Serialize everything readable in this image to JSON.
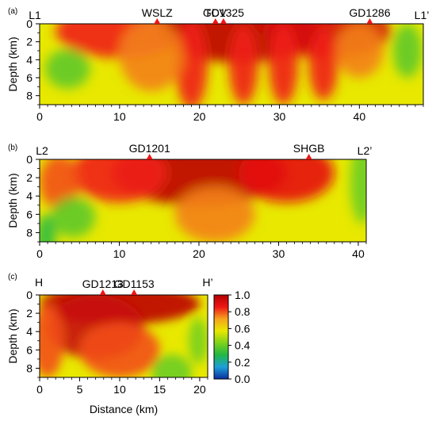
{
  "chart_data": [
    {
      "type": "heatmap",
      "panel_label": "(a)",
      "profile_start": "L1",
      "profile_end": "L1’",
      "ylabel": "Depth (km)",
      "xlabel": "",
      "xlim": [
        0,
        48
      ],
      "ylim": [
        0,
        9
      ],
      "xticks": [
        0,
        10,
        20,
        30,
        40
      ],
      "yticks": [
        0,
        2,
        4,
        6,
        8
      ],
      "stations": [
        {
          "name": "WSLZ",
          "x": 14.7
        },
        {
          "name": "TCV",
          "x": 22.0
        },
        {
          "name": "GD1325",
          "x": 23.0
        },
        {
          "name": "GD1286",
          "x": 41.3
        }
      ],
      "blobs": [
        {
          "x": 10,
          "y": 0.8,
          "rx": 8,
          "ry": 3.0,
          "v": 0.85
        },
        {
          "x": 25,
          "y": 0.8,
          "rx": 10,
          "ry": 3.5,
          "v": 0.98
        },
        {
          "x": 36,
          "y": 0.8,
          "rx": 8,
          "ry": 3.0,
          "v": 0.92
        },
        {
          "x": 19,
          "y": 4.5,
          "rx": 2.0,
          "ry": 5.0,
          "v": 0.85
        },
        {
          "x": 25.5,
          "y": 4.5,
          "rx": 1.8,
          "ry": 4.5,
          "v": 0.85
        },
        {
          "x": 30.5,
          "y": 4.5,
          "rx": 1.8,
          "ry": 4.5,
          "v": 0.85
        },
        {
          "x": 35.5,
          "y": 4.5,
          "rx": 1.8,
          "ry": 4.0,
          "v": 0.85
        },
        {
          "x": 14,
          "y": 3.5,
          "rx": 4,
          "ry": 4.0,
          "v": 0.75
        },
        {
          "x": 40,
          "y": 3.0,
          "rx": 3,
          "ry": 3.0,
          "v": 0.75
        },
        {
          "x": 3.5,
          "y": 5.0,
          "rx": 2.8,
          "ry": 2.2,
          "v": 0.38
        },
        {
          "x": 46,
          "y": 3.0,
          "rx": 1.8,
          "ry": 3.0,
          "v": 0.38
        }
      ]
    },
    {
      "type": "heatmap",
      "panel_label": "(b)",
      "profile_start": "L2",
      "profile_end": "L2’",
      "ylabel": "Depth (km)",
      "xlabel": "",
      "xlim": [
        0,
        41
      ],
      "ylim": [
        0,
        9
      ],
      "xticks": [
        0,
        10,
        20,
        30,
        40
      ],
      "yticks": [
        0,
        2,
        4,
        6,
        8
      ],
      "stations": [
        {
          "name": "GD1201",
          "x": 13.8
        },
        {
          "name": "SHGB",
          "x": 33.8
        }
      ],
      "blobs": [
        {
          "x": 20,
          "y": 1.5,
          "rx": 11,
          "ry": 3.5,
          "v": 0.98
        },
        {
          "x": 10,
          "y": 1.5,
          "rx": 6,
          "ry": 3.2,
          "v": 0.85
        },
        {
          "x": 31,
          "y": 1.5,
          "rx": 6,
          "ry": 3.2,
          "v": 0.88
        },
        {
          "x": 22,
          "y": 6.0,
          "rx": 5,
          "ry": 3.0,
          "v": 0.75
        },
        {
          "x": 2.5,
          "y": 2.5,
          "rx": 2.5,
          "ry": 3.0,
          "v": 0.8
        },
        {
          "x": 4.2,
          "y": 6.3,
          "rx": 2.8,
          "ry": 2.2,
          "v": 0.38
        },
        {
          "x": 40.5,
          "y": 2.5,
          "rx": 1.5,
          "ry": 4.5,
          "v": 0.4
        },
        {
          "x": 0.8,
          "y": 8.5,
          "rx": 1.2,
          "ry": 2.5,
          "v": 0.3
        }
      ]
    },
    {
      "type": "heatmap",
      "panel_label": "(c)",
      "profile_start": "H",
      "profile_end": "H’",
      "ylabel": "Depth (km)",
      "xlabel": "Distance (km)",
      "xlim": [
        0,
        21
      ],
      "ylim": [
        0,
        9
      ],
      "xticks": [
        0,
        5,
        10,
        15,
        20
      ],
      "yticks": [
        0,
        2,
        4,
        6,
        8
      ],
      "stations": [
        {
          "name": "GD1213",
          "x": 7.9
        },
        {
          "name": "GD1153",
          "x": 11.8
        }
      ],
      "blobs": [
        {
          "x": 10,
          "y": 1.0,
          "rx": 10,
          "ry": 2.2,
          "v": 0.98
        },
        {
          "x": 7,
          "y": 3.5,
          "rx": 6,
          "ry": 3.5,
          "v": 0.95
        },
        {
          "x": 10,
          "y": 6.0,
          "rx": 5,
          "ry": 3.0,
          "v": 0.8
        },
        {
          "x": 1,
          "y": 5.0,
          "rx": 2,
          "ry": 4.0,
          "v": 0.8
        },
        {
          "x": 16.5,
          "y": 8.5,
          "rx": 2.5,
          "ry": 2.0,
          "v": 0.4
        },
        {
          "x": 19.8,
          "y": 5.0,
          "rx": 1.2,
          "ry": 2.5,
          "v": 0.42
        }
      ]
    }
  ],
  "colorbar": {
    "min": 0.0,
    "max": 1.0,
    "ticks": [
      "1.0",
      "0.8",
      "0.6",
      "0.4",
      "0.2",
      "0.0"
    ],
    "stops": [
      "#0b2f9e",
      "#1d9fd9",
      "#20b845",
      "#7ed21c",
      "#e8e800",
      "#f4a41c",
      "#f01616",
      "#b30000"
    ]
  }
}
